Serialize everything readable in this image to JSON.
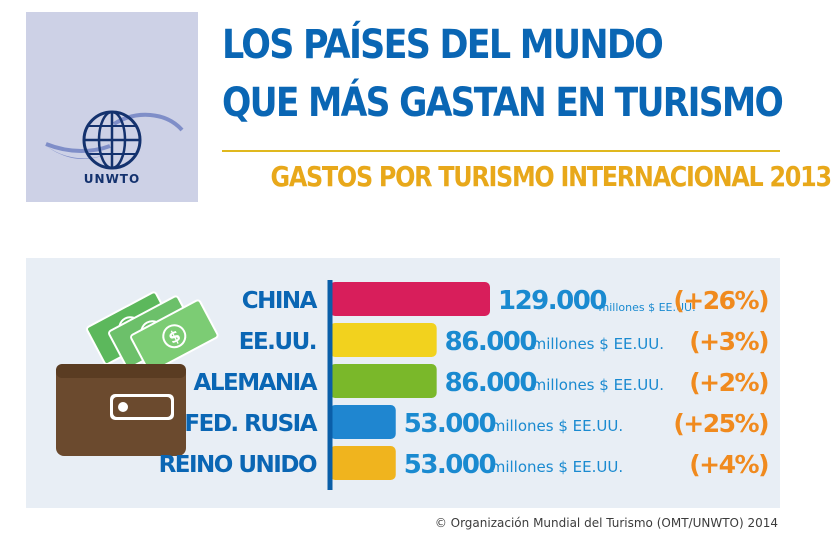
{
  "logo": {
    "text": "UNWTO",
    "icon": "globe-logo-icon"
  },
  "header": {
    "title_line1": "LOS PAÍSES DEL MUNDO",
    "title_line2": "QUE MÁS GASTAN EN TURISMO",
    "subtitle": "GASTOS POR TURISMO INTERNACIONAL 2013"
  },
  "chart_data": {
    "type": "bar",
    "orientation": "horizontal",
    "categories": [
      "CHINA",
      "EE.UU.",
      "ALEMANIA",
      "FED. RUSIA",
      "REINO UNIDO"
    ],
    "values": [
      129000,
      86000,
      86000,
      53000,
      53000
    ],
    "value_labels": [
      "129.000",
      "86.000",
      "86.000",
      "53.000",
      "53.000"
    ],
    "unit_label": "millones $ EE.UU.",
    "changes": [
      "(+26%)",
      "(+3%)",
      "(+2%)",
      "(+25%)",
      "(+4%)"
    ],
    "colors": [
      "#d81e5b",
      "#f2d21e",
      "#7ab82a",
      "#1f86d0",
      "#f0b41e"
    ],
    "value_color": "#1a8ad0",
    "change_color": "#f08a1e",
    "category_color": "#0a66b4"
  },
  "illustration": {
    "icon": "wallet-with-money-icon"
  },
  "footer": {
    "source": "© Organización Mundial del Turismo (OMT/UNWTO) 2014"
  }
}
